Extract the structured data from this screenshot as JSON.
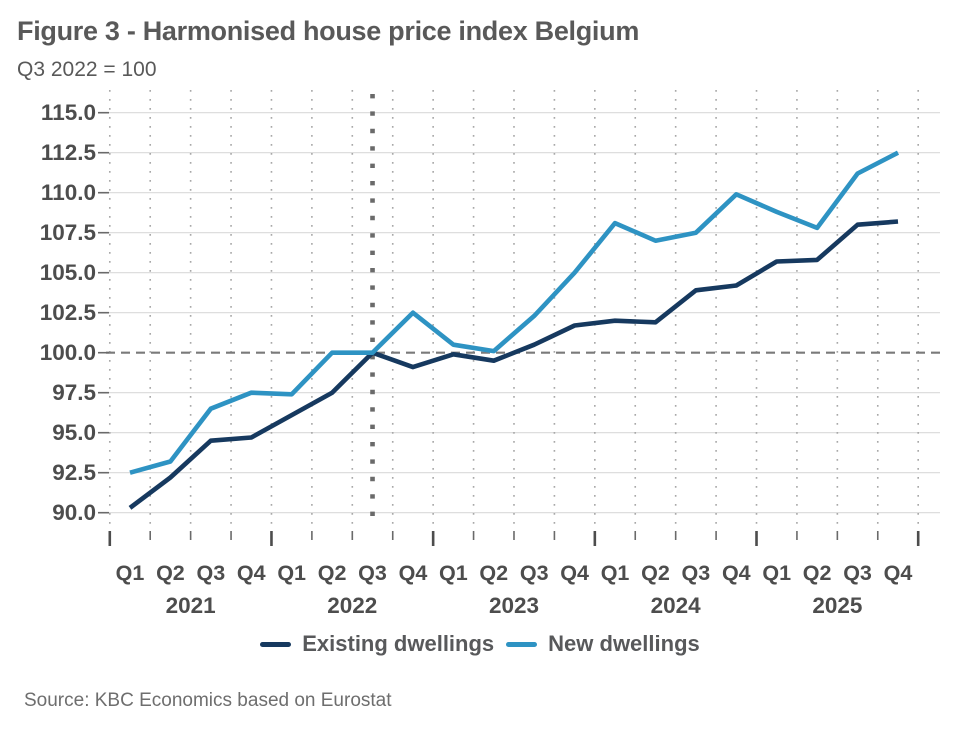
{
  "chart_data": {
    "type": "line",
    "title": "Figure 3 - Harmonised house price index Belgium",
    "subtitle": "Q3 2022 = 100",
    "source": "Source: KBC Economics based on Eurostat",
    "quarter_labels": [
      "Q1",
      "Q2",
      "Q3",
      "Q4"
    ],
    "year_labels": [
      "2021",
      "2022",
      "2023",
      "2024",
      "2025"
    ],
    "y_ticks": [
      90.0,
      92.5,
      95.0,
      97.5,
      100.0,
      102.5,
      105.0,
      107.5,
      110.0,
      112.5,
      115.0
    ],
    "ylim": [
      88.5,
      116.5
    ],
    "grid": {
      "horizontal": "solid",
      "vertical": "dotted"
    },
    "legend_position": "bottom",
    "reference_lines": {
      "horizontal_value": 100.0,
      "horizontal_style": "dashed",
      "vertical_at": "Q3 2022",
      "vertical_index": 6,
      "vertical_style": "dotted"
    },
    "series": [
      {
        "name": "Existing dwellings",
        "color": "#16395F",
        "values": [
          90.3,
          92.2,
          94.5,
          94.7,
          96.1,
          97.5,
          100.0,
          99.1,
          99.9,
          99.5,
          100.5,
          101.7,
          102.0,
          101.9,
          103.9,
          104.2,
          105.7,
          105.8,
          108.0,
          108.2
        ]
      },
      {
        "name": "New dwellings",
        "color": "#2E93C3",
        "values": [
          92.5,
          93.2,
          96.5,
          97.5,
          97.4,
          100.0,
          100.0,
          102.5,
          100.5,
          100.1,
          102.3,
          105.0,
          108.1,
          107.0,
          107.5,
          109.9,
          108.8,
          107.8,
          111.2,
          112.5
        ]
      }
    ],
    "colors": {
      "grid_solid": "#D9D9D9",
      "grid_dotted": "#A8A8A8",
      "dashed_baseline": "#7A7A7A",
      "reference_dotted": "#6A6A6A",
      "axis_text": "#4D4D4D",
      "title_text": "#595959",
      "legend_text": "#58595B",
      "source_text": "#6E6E6E"
    }
  }
}
